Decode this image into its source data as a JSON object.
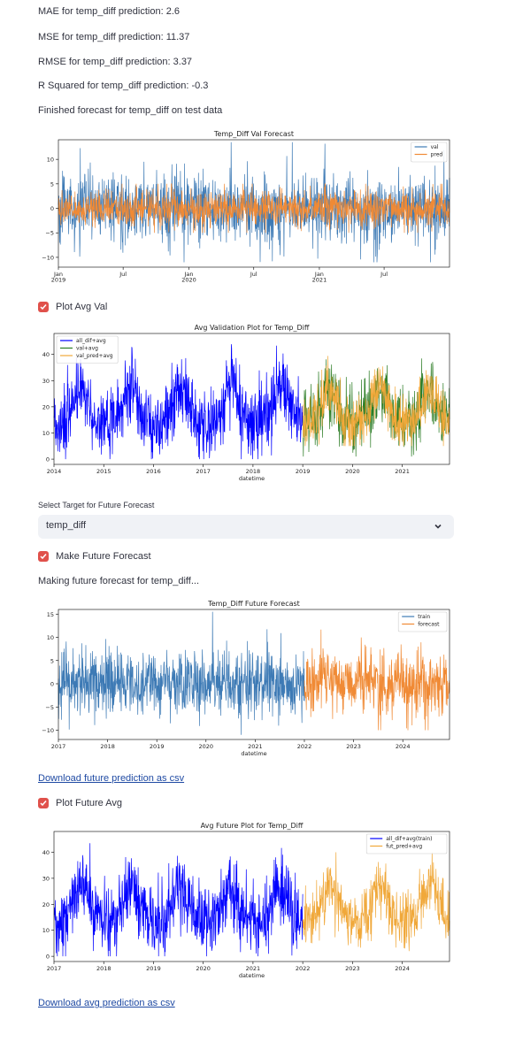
{
  "metrics": {
    "mae": "MAE for temp_diff prediction: 2.6",
    "mse": "MSE for temp_diff prediction: 11.37",
    "rmse": "RMSE for temp_diff prediction: 3.37",
    "r2": "R Squared for temp_diff prediction: -0.3",
    "finished": "Finished forecast for temp_diff on test data"
  },
  "checkbox_plot_avg_val": {
    "label": "Plot Avg Val",
    "checked": true
  },
  "select_target": {
    "label": "Select Target for Future Forecast",
    "value": "temp_diff"
  },
  "checkbox_future": {
    "label": "Make Future Forecast",
    "checked": true
  },
  "making_text": "Making future forecast for temp_diff...",
  "download_future": "Download future prediction as csv",
  "checkbox_future_avg": {
    "label": "Plot Future Avg",
    "checked": true
  },
  "download_avg": "Download avg prediction as csv",
  "colors": {
    "blue": "#3d7ab5",
    "orange": "#f08a35",
    "pure_blue": "#0000ff",
    "green": "#2b7c24",
    "gold": "#f0a83a",
    "check": "#e0514b"
  },
  "chart_data": [
    {
      "type": "line",
      "title": "Temp_Diff Val Forecast",
      "xlabel": "",
      "ylabel": "",
      "x_ticks": [
        "Jan\n2019",
        "Jul",
        "Jan\n2020",
        "Jul",
        "Jan\n2021",
        "Jul"
      ],
      "y_ticks": [
        -10,
        -5,
        0,
        5,
        10
      ],
      "ylim": [
        -12,
        14
      ],
      "xlim": [
        "2019-01-01",
        "2021-12-31"
      ],
      "legend": "top-right",
      "series": [
        {
          "name": "val",
          "x_range": [
            "2019-01-01",
            "2021-12-31"
          ],
          "approx_range": [
            -11,
            13.5
          ]
        },
        {
          "name": "pred",
          "x_range": [
            "2019-01-01",
            "2021-12-31"
          ],
          "approx_range": [
            -5,
            5
          ]
        }
      ]
    },
    {
      "type": "line",
      "title": "Avg Validation Plot for Temp_Diff",
      "xlabel": "datetime",
      "ylabel": "",
      "x_ticks": [
        "2014",
        "2015",
        "2016",
        "2017",
        "2018",
        "2019",
        "2020",
        "2021"
      ],
      "y_ticks": [
        0,
        10,
        20,
        30,
        40
      ],
      "ylim": [
        -2,
        48
      ],
      "xlim": [
        2014,
        2021.95
      ],
      "legend": "top-left",
      "series": [
        {
          "name": "all_dif+avg",
          "x_range": [
            2014,
            2019
          ],
          "approx_range": [
            0,
            46
          ]
        },
        {
          "name": "val+avg",
          "x_range": [
            2019,
            2021.95
          ],
          "approx_range": [
            1,
            46
          ]
        },
        {
          "name": "val_pred+avg",
          "x_range": [
            2019,
            2021.95
          ],
          "approx_range": [
            5,
            42
          ]
        }
      ]
    },
    {
      "type": "line",
      "title": "Temp_Diff Future Forecast",
      "xlabel": "datetime",
      "ylabel": "",
      "x_ticks": [
        "2017",
        "2018",
        "2019",
        "2020",
        "2021",
        "2022",
        "2023",
        "2024"
      ],
      "y_ticks": [
        -10,
        -5,
        0,
        5,
        10,
        15
      ],
      "ylim": [
        -12,
        16
      ],
      "xlim": [
        2017,
        2024.95
      ],
      "legend": "top-right",
      "series": [
        {
          "name": "train",
          "x_range": [
            2017,
            2022
          ],
          "approx_range": [
            -11,
            15.5
          ]
        },
        {
          "name": "forecast",
          "x_range": [
            2022,
            2024.95
          ],
          "approx_range": [
            -10,
            13
          ]
        }
      ]
    },
    {
      "type": "line",
      "title": "Avg Future Plot for Temp_Diff",
      "xlabel": "datetime",
      "ylabel": "",
      "x_ticks": [
        "2017",
        "2018",
        "2019",
        "2020",
        "2021",
        "2022",
        "2023",
        "2024"
      ],
      "y_ticks": [
        0,
        10,
        20,
        30,
        40
      ],
      "ylim": [
        -2,
        48
      ],
      "xlim": [
        2017,
        2024.95
      ],
      "legend": "top-right",
      "series": [
        {
          "name": "all_dif+avg(train)",
          "x_range": [
            2017,
            2022
          ],
          "approx_range": [
            0,
            46
          ]
        },
        {
          "name": "fut_pred+avg",
          "x_range": [
            2022,
            2024.95
          ],
          "approx_range": [
            2,
            40
          ]
        }
      ]
    }
  ]
}
